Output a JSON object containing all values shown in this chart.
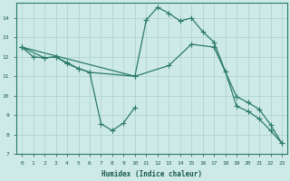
{
  "background_color": "#ceeae6",
  "grid_color": "#b0d4cf",
  "line_color": "#2a7a6a",
  "xlim": [
    -0.5,
    23.5
  ],
  "ylim": [
    7,
    14.8
  ],
  "xlabel": "Humidex (Indice chaleur)",
  "xticks": [
    0,
    1,
    2,
    3,
    4,
    5,
    6,
    7,
    8,
    9,
    10,
    11,
    12,
    13,
    14,
    15,
    16,
    17,
    18,
    19,
    20,
    21,
    22,
    23
  ],
  "yticks": [
    7,
    8,
    9,
    10,
    11,
    12,
    13,
    14
  ],
  "line1_x": [
    0,
    1,
    2,
    3,
    4,
    5,
    6,
    7,
    8,
    9,
    10
  ],
  "line1_y": [
    12.5,
    12.0,
    11.95,
    12.0,
    11.65,
    11.4,
    11.2,
    8.55,
    8.2,
    8.6,
    9.4
  ],
  "line2_x": [
    0,
    10,
    11,
    12,
    13,
    14,
    15,
    16,
    17,
    18,
    19,
    20,
    21,
    22,
    23
  ],
  "line2_y": [
    12.5,
    11.0,
    13.9,
    14.55,
    14.25,
    13.85,
    14.0,
    13.3,
    12.75,
    11.25,
    9.45,
    9.2,
    8.8,
    8.2,
    7.55
  ],
  "line3_x": [
    0,
    2,
    3,
    4,
    5,
    6,
    10,
    13,
    15,
    17,
    19,
    20,
    21,
    22,
    23
  ],
  "line3_y": [
    12.5,
    11.95,
    12.0,
    11.7,
    11.4,
    11.2,
    11.0,
    11.55,
    12.65,
    12.5,
    9.95,
    9.65,
    9.3,
    8.5,
    7.55
  ]
}
